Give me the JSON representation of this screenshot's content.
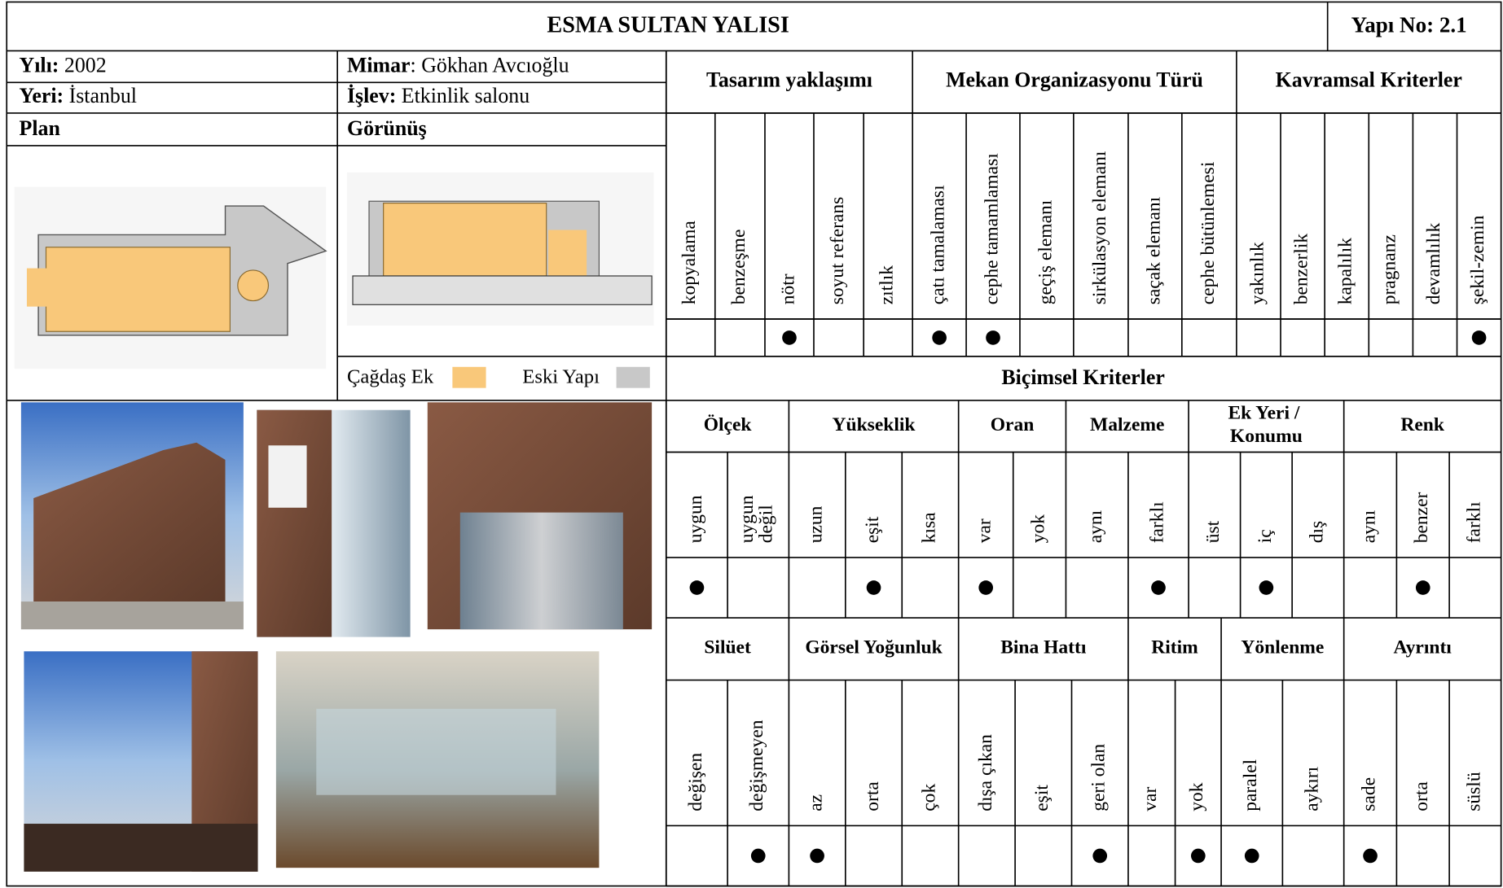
{
  "header": {
    "title": "ESMA SULTAN YALISI",
    "building_no": "Yapı No: 2.1"
  },
  "info": {
    "year_label": "Yılı:",
    "year": "2002",
    "place_label": "Yeri:",
    "place": "İstanbul",
    "architect_label": "Mimar",
    "architect": ": Gökhan Avcıoğlu",
    "function_label": "İşlev:",
    "function": "Etkinlik salonu",
    "plan_label": "Plan",
    "view_label": "Görünüş"
  },
  "legend": [
    {
      "label": "Çağdaş Ek",
      "color": "#f9c87a"
    },
    {
      "label": "Eski Yapı",
      "color": "#c8c8c8"
    }
  ],
  "criteria_top": [
    {
      "name": "Tasarım yaklaşımı",
      "items": [
        {
          "label": "kopyalama",
          "checked": false
        },
        {
          "label": "benzeşme",
          "checked": false
        },
        {
          "label": "nötr",
          "checked": true
        },
        {
          "label": "soyut referans",
          "checked": false
        },
        {
          "label": "zıtlık",
          "checked": false
        }
      ]
    },
    {
      "name": "Mekan Organizasyonu Türü",
      "items": [
        {
          "label": "çatı tamalaması",
          "checked": true
        },
        {
          "label": "cephe tamamlaması",
          "checked": true
        },
        {
          "label": "geçiş elemanı",
          "checked": false
        },
        {
          "label": "sirkülasyon elemanı",
          "checked": false
        },
        {
          "label": "saçak elemanı",
          "checked": false
        },
        {
          "label": "cephe bütünlemesi",
          "checked": false
        }
      ]
    },
    {
      "name": "Kavramsal Kriterler",
      "items": [
        {
          "label": "yakınlık",
          "checked": false
        },
        {
          "label": "benzerlik",
          "checked": false
        },
        {
          "label": "kapalılık",
          "checked": false
        },
        {
          "label": "pragnanz",
          "checked": false
        },
        {
          "label": "devamlılık",
          "checked": false
        },
        {
          "label": "şekil-zemin",
          "checked": true
        }
      ]
    }
  ],
  "formal_title": "Biçimsel Kriterler",
  "formal_rows": [
    [
      {
        "name": "Ölçek",
        "items": [
          {
            "label": "uygun",
            "checked": true
          },
          {
            "label": "uygun değil",
            "checked": false
          }
        ]
      },
      {
        "name": "Yükseklik",
        "items": [
          {
            "label": "uzun",
            "checked": false
          },
          {
            "label": "eşit",
            "checked": true
          },
          {
            "label": "kısa",
            "checked": false
          }
        ]
      },
      {
        "name": "Oran",
        "items": [
          {
            "label": "var",
            "checked": true
          },
          {
            "label": "yok",
            "checked": false
          }
        ]
      },
      {
        "name": "Malzeme",
        "items": [
          {
            "label": "aynı",
            "checked": false
          },
          {
            "label": "farklı",
            "checked": true
          }
        ]
      },
      {
        "name": "Ek Yeri / Konumu",
        "items": [
          {
            "label": "üst",
            "checked": false
          },
          {
            "label": "iç",
            "checked": true
          },
          {
            "label": "dış",
            "checked": false
          }
        ]
      },
      {
        "name": "Renk",
        "items": [
          {
            "label": "aynı",
            "checked": false
          },
          {
            "label": "benzer",
            "checked": true
          },
          {
            "label": "farklı",
            "checked": false
          }
        ]
      }
    ],
    [
      {
        "name": "Silüet",
        "items": [
          {
            "label": "değişen",
            "checked": false
          },
          {
            "label": "değişmeyen",
            "checked": true
          }
        ]
      },
      {
        "name": "Görsel Yoğunluk",
        "items": [
          {
            "label": "az",
            "checked": true
          },
          {
            "label": "orta",
            "checked": false
          },
          {
            "label": "çok",
            "checked": false
          }
        ]
      },
      {
        "name": "Bina Hattı",
        "items": [
          {
            "label": "dışa çıkan",
            "checked": false
          },
          {
            "label": "eşit",
            "checked": false
          },
          {
            "label": "geri olan",
            "checked": true
          }
        ]
      },
      {
        "name": "Ritim",
        "items": [
          {
            "label": "var",
            "checked": false
          },
          {
            "label": "yok",
            "checked": true
          }
        ]
      },
      {
        "name": "Yönlenme",
        "items": [
          {
            "label": "paralel",
            "checked": true
          },
          {
            "label": "aykırı",
            "checked": false
          }
        ]
      },
      {
        "name": "Ayrıntı",
        "items": [
          {
            "label": "sade",
            "checked": true
          },
          {
            "label": "orta",
            "checked": false
          },
          {
            "label": "süslü",
            "checked": false
          }
        ]
      }
    ]
  ]
}
